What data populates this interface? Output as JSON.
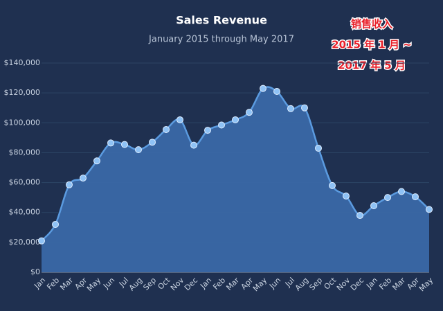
{
  "chart_data": {
    "type": "area",
    "title": "Sales Revenue",
    "subtitle": "January 2015 through May 2017",
    "categories": [
      "Jan",
      "Feb",
      "Mar",
      "Apr",
      "May",
      "Jun",
      "Jul",
      "Aug",
      "Sep",
      "Oct",
      "Nov",
      "Dec",
      "Jan",
      "Feb",
      "Mar",
      "Apr",
      "May",
      "Jun",
      "Jul",
      "Aug",
      "Sep",
      "Oct",
      "Nov",
      "Dec",
      "Jan",
      "Feb",
      "Mar",
      "Apr",
      "May"
    ],
    "values": [
      21000,
      32000,
      58500,
      63000,
      74500,
      86500,
      85500,
      82000,
      87000,
      95500,
      102000,
      85000,
      95000,
      98500,
      102000,
      107000,
      123000,
      121000,
      109500,
      110000,
      83000,
      58000,
      51000,
      38000,
      44500,
      50000,
      54000,
      50500,
      42000
    ],
    "color": "#5b9be0",
    "ylim": [
      0,
      140000
    ],
    "yticks": [
      {
        "value": 0,
        "label": "$0"
      },
      {
        "value": 20000,
        "label": "$20,000"
      },
      {
        "value": 40000,
        "label": "$40,000"
      },
      {
        "value": 60000,
        "label": "$60,000"
      },
      {
        "value": 80000,
        "label": "$80,000"
      },
      {
        "value": 100000,
        "label": "$100,000"
      },
      {
        "value": 120000,
        "label": "$120,000"
      },
      {
        "value": 140000,
        "label": "$140,000"
      }
    ],
    "grid": true,
    "annotation": [
      "销售收入",
      "2015 年 1 月 ~",
      "2017 年 5 月"
    ]
  }
}
